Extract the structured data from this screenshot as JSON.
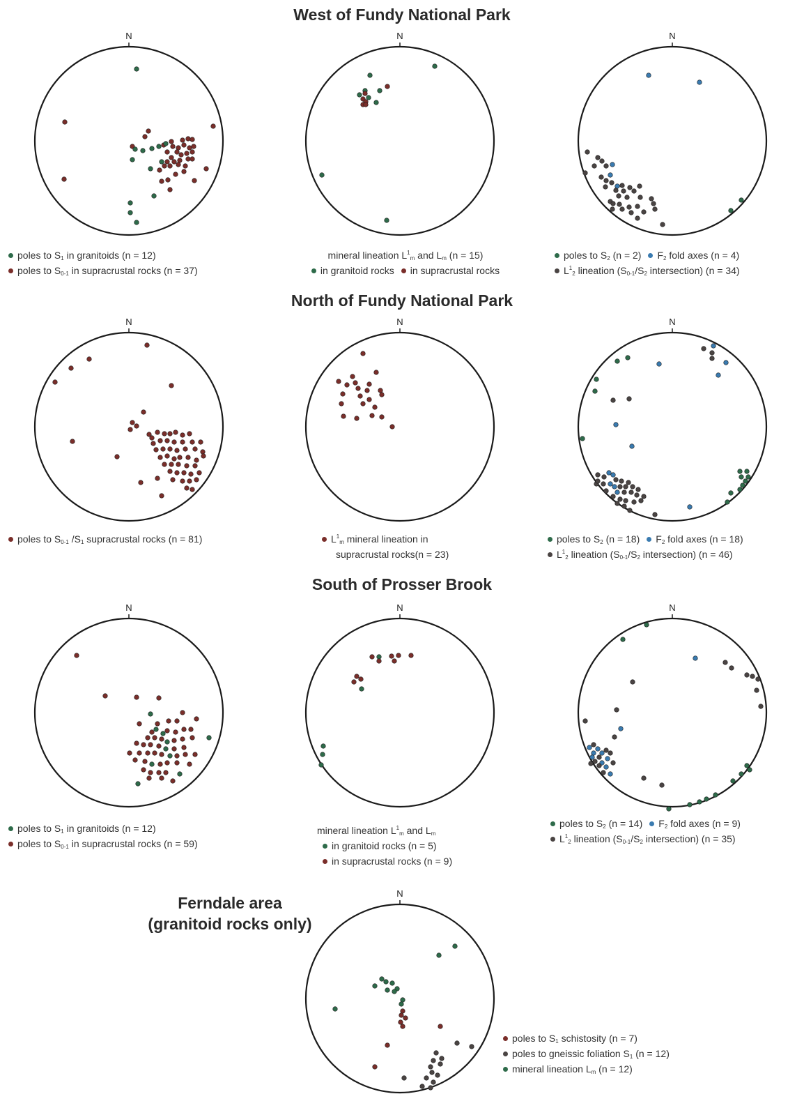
{
  "colors": {
    "green": "#2e6b4a",
    "red": "#7a2e2a",
    "blue": "#3a7bb0",
    "gray": "#4a4443",
    "outline": "#1b1b1b"
  },
  "north_label": "N",
  "sections": {
    "west": "West of Fundy National Park",
    "north": "North of Fundy National Park",
    "south": "South of Prosser Brook",
    "ferndale_line1": "Ferndale area",
    "ferndale_line2": "(granitoid rocks only)"
  },
  "legends": {
    "w1": {
      "l1": "poles to S",
      "l1s": "1",
      "l1t": " in granitoids (n = 12)",
      "l2": "poles to S",
      "l2s": "0-1",
      "l2t": " in supracrustal rocks (n = 37)"
    },
    "w2": {
      "h_a": "mineral lineation L",
      "h_sup": "1",
      "h_sub": "m",
      "h_b": " and L",
      "h_sub2": "m",
      "h_c": " (n = 15)",
      "l1": "in granitoid rocks",
      "l2": "in supracrustal rocks"
    },
    "w3": {
      "l1": "poles to S",
      "l1s": "2",
      "l1t": " (n = 2)",
      "l1b": "F",
      "l1bs": "2",
      "l1bt": " fold axes (n = 4)",
      "l2": "L",
      "l2sup": "1",
      "l2sub": "2",
      "l2t": " lineation (S",
      "l2s2": "0-1",
      "l2t2": "/S",
      "l2s3": "2",
      "l2t3": " intersection) (n = 34)"
    },
    "n1": {
      "l1": "poles to S",
      "l1s": "0-1",
      "l1t": " /S",
      "l1s2": "1",
      "l1t2": " supracrustal rocks (n = 81)"
    },
    "n2": {
      "l1": "L",
      "l1sup": "1",
      "l1sub": "m",
      "l1t": " mineral lineation in",
      "l2": "supracrustal rocks(n = 23)"
    },
    "n3": {
      "l1": "poles to S",
      "l1s": "2",
      "l1t": " (n = 18)",
      "l1b": "F",
      "l1bs": "2",
      "l1bt": " fold axes (n = 18)",
      "l2": "L",
      "l2sup": "1",
      "l2sub": "2",
      "l2t": " lineation (S",
      "l2s2": "0-1",
      "l2t2": "/S",
      "l2s3": "2",
      "l2t3": " intersection) (n = 46)"
    },
    "s1": {
      "l1": "poles to S",
      "l1s": "1",
      "l1t": " in granitoids (n = 12)",
      "l2": "poles to S",
      "l2s": "0-1",
      "l2t": " in supracrustal rocks (n = 59)"
    },
    "s2": {
      "h_a": "mineral lineation L",
      "h_sup": "1",
      "h_sub": "m",
      "h_b": " and L",
      "h_sub2": "m",
      "l1": "in granitoid rocks (n = 5)",
      "l2": "in supracrustal rocks (n = 9)"
    },
    "s3": {
      "l1": "poles to S",
      "l1s": "2",
      "l1t": " (n = 14)",
      "l1b": "F",
      "l1bs": "2",
      "l1bt": " fold axes (n = 9)",
      "l2": "L",
      "l2sup": "1",
      "l2sub": "2",
      "l2t": " lineation (S",
      "l2s2": "0-1",
      "l2t2": "/S",
      "l2s3": "2",
      "l2t3": " intersection) (n = 35)"
    },
    "f": {
      "l1": "poles to S",
      "l1s": "1",
      "l1t": " schistosity (n = 7)",
      "l2": "poles to gneissic foliation S",
      "l2s": "1",
      "l2t": " (n = 12)",
      "l3": "mineral lineation L",
      "l3s": "m",
      "l3t": " (n = 12)"
    }
  }
}
